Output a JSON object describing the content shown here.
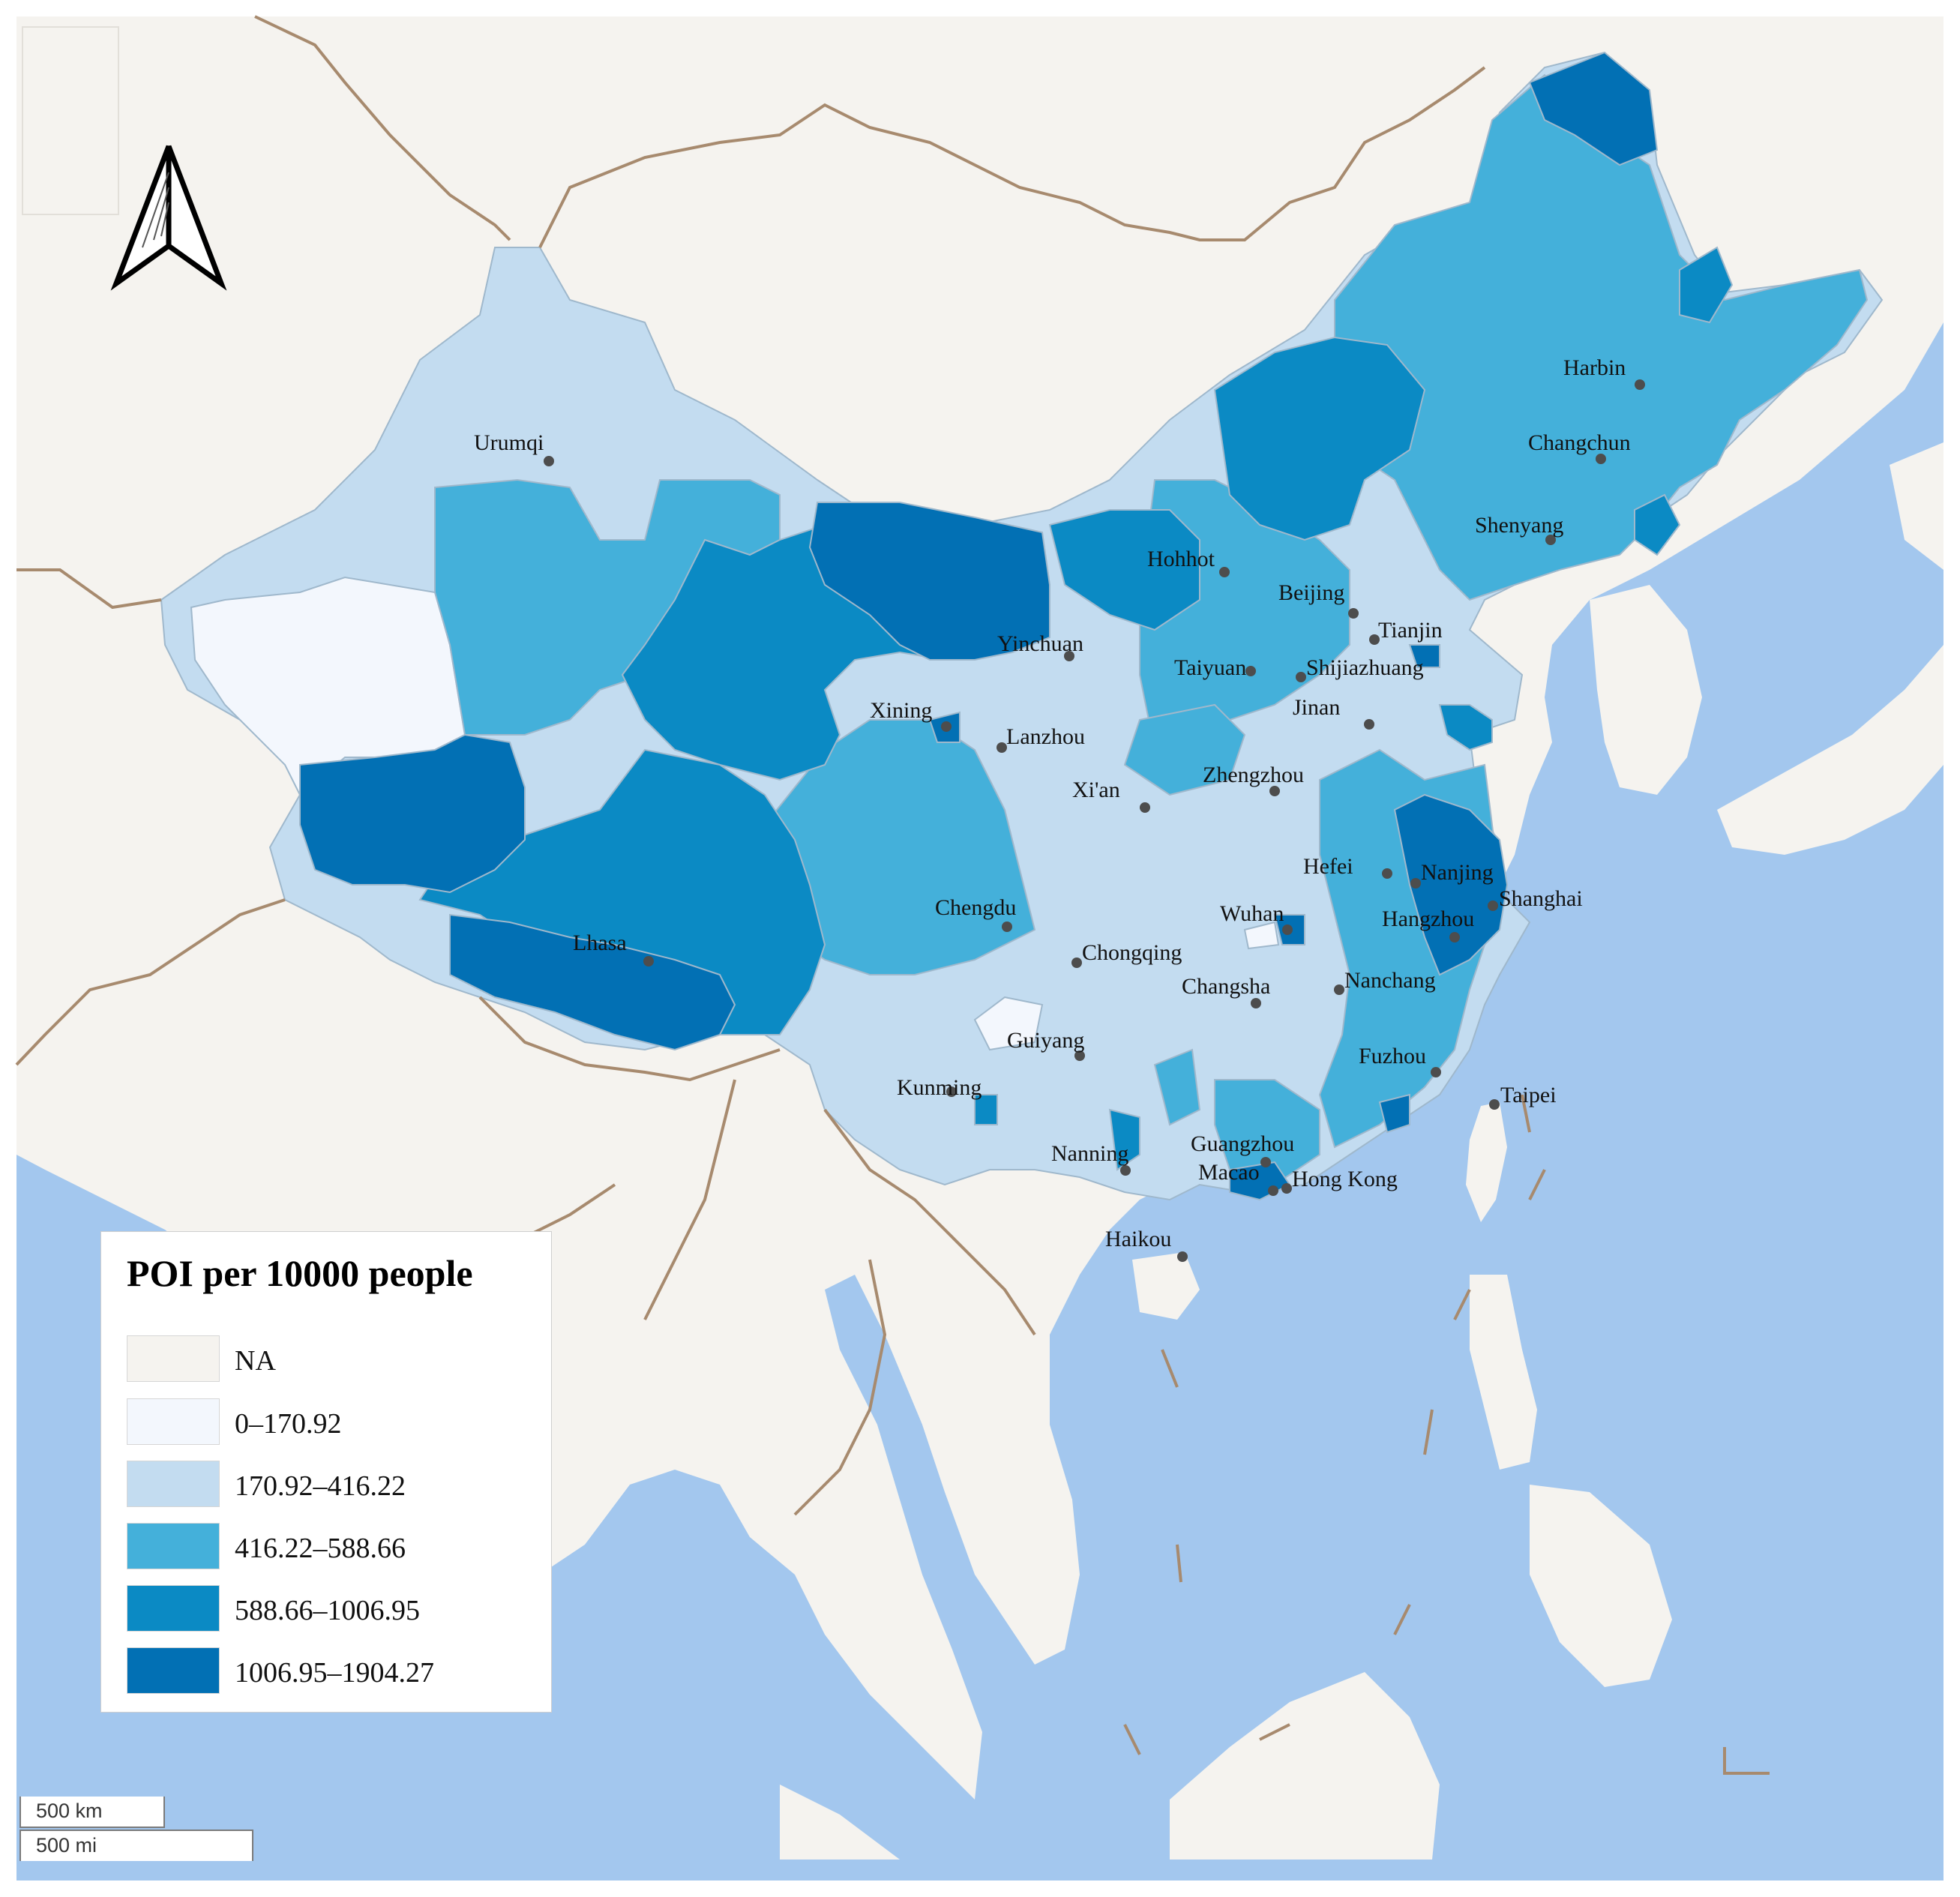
{
  "map": {
    "legend": {
      "title": "POI per 10000 people",
      "classes": [
        {
          "label": "NA",
          "color": "#f5f3ef"
        },
        {
          "label": "0–170.92",
          "color": "#f3f7fd"
        },
        {
          "label": "170.92–416.22",
          "color": "#c3dcf0"
        },
        {
          "label": "416.22–588.66",
          "color": "#44b0da"
        },
        {
          "label": "588.66–1006.95",
          "color": "#0b8ac4"
        },
        {
          "label": "1006.95–1904.27",
          "color": "#0270b4"
        }
      ]
    },
    "scale_bar": {
      "km": "500 km",
      "mi": "500 mi"
    },
    "north_arrow": "north-arrow-icon",
    "colors": {
      "sea": "#a3c7ee",
      "land": "#f5f3ef",
      "border": "#a78a6e",
      "city_dot": "#4d4d4d"
    },
    "cities": [
      {
        "name": "Urumqi"
      },
      {
        "name": "Harbin"
      },
      {
        "name": "Changchun"
      },
      {
        "name": "Shenyang"
      },
      {
        "name": "Hohhot"
      },
      {
        "name": "Beijing"
      },
      {
        "name": "Tianjin"
      },
      {
        "name": "Yinchuan"
      },
      {
        "name": "Taiyuan"
      },
      {
        "name": "Shijiazhuang"
      },
      {
        "name": "Xining"
      },
      {
        "name": "Lanzhou"
      },
      {
        "name": "Jinan"
      },
      {
        "name": "Xi'an"
      },
      {
        "name": "Zhengzhou"
      },
      {
        "name": "Hefei"
      },
      {
        "name": "Nanjing"
      },
      {
        "name": "Shanghai"
      },
      {
        "name": "Chengdu"
      },
      {
        "name": "Wuhan"
      },
      {
        "name": "Hangzhou"
      },
      {
        "name": "Lhasa"
      },
      {
        "name": "Chongqing"
      },
      {
        "name": "Changsha"
      },
      {
        "name": "Nanchang"
      },
      {
        "name": "Guiyang"
      },
      {
        "name": "Fuzhou"
      },
      {
        "name": "Kunming"
      },
      {
        "name": "Taipei"
      },
      {
        "name": "Nanning"
      },
      {
        "name": "Guangzhou"
      },
      {
        "name": "Macao"
      },
      {
        "name": "Hong Kong"
      },
      {
        "name": "Haikou"
      }
    ]
  }
}
